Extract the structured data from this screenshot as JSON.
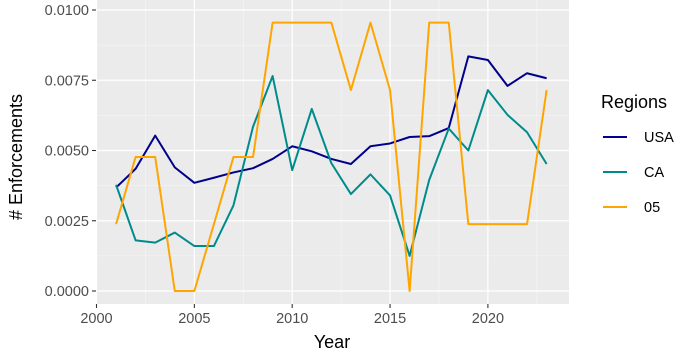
{
  "chart_data": {
    "type": "line",
    "xlabel": "Year",
    "ylabel": "# Enforcements",
    "xlim": [
      2000,
      2024
    ],
    "ylim": [
      0,
      0.01
    ],
    "x_ticks": [
      2000,
      2005,
      2010,
      2015,
      2020
    ],
    "x_tick_labels": [
      "2000",
      "2005",
      "2010",
      "2015",
      "2020"
    ],
    "y_ticks": [
      0,
      0.0025,
      0.005,
      0.0075,
      0.01
    ],
    "y_tick_labels": [
      "0.0000",
      "0.0025",
      "0.0050",
      "0.0075",
      "0.0100"
    ],
    "grid": true,
    "legend": {
      "title": "Regions",
      "placement": "right"
    },
    "x": [
      2001,
      2002,
      2003,
      2004,
      2005,
      2006,
      2007,
      2008,
      2009,
      2010,
      2011,
      2012,
      2013,
      2014,
      2015,
      2016,
      2017,
      2018,
      2019,
      2020,
      2021,
      2022,
      2023
    ],
    "series": [
      {
        "name": "USA",
        "color": "#00008b",
        "values": [
          0.00368,
          0.00435,
          0.00553,
          0.0044,
          0.00385,
          0.00403,
          0.00422,
          0.00437,
          0.0047,
          0.00515,
          0.00497,
          0.0047,
          0.00452,
          0.00515,
          0.00525,
          0.00548,
          0.00551,
          0.0058,
          0.00835,
          0.00822,
          0.0073,
          0.00775,
          0.00757
        ]
      },
      {
        "name": "CA",
        "color": "#008b8b",
        "values": [
          0.00378,
          0.0018,
          0.00172,
          0.00208,
          0.0016,
          0.0016,
          0.00305,
          0.00585,
          0.00765,
          0.0043,
          0.00648,
          0.00455,
          0.00345,
          0.00415,
          0.0034,
          0.00125,
          0.00395,
          0.00578,
          0.005,
          0.00715,
          0.00627,
          0.00565,
          0.00452
        ]
      },
      {
        "name": "05",
        "color": "#ffa500",
        "values": [
          0.00238,
          0.00477,
          0.00477,
          0.0,
          0.0,
          0.00238,
          0.00477,
          0.00477,
          0.00955,
          0.00955,
          0.00955,
          0.00955,
          0.00715,
          0.00955,
          0.00715,
          0.0,
          0.00955,
          0.00955,
          0.00238,
          0.00238,
          0.00238,
          0.00238,
          0.00715
        ]
      }
    ]
  }
}
